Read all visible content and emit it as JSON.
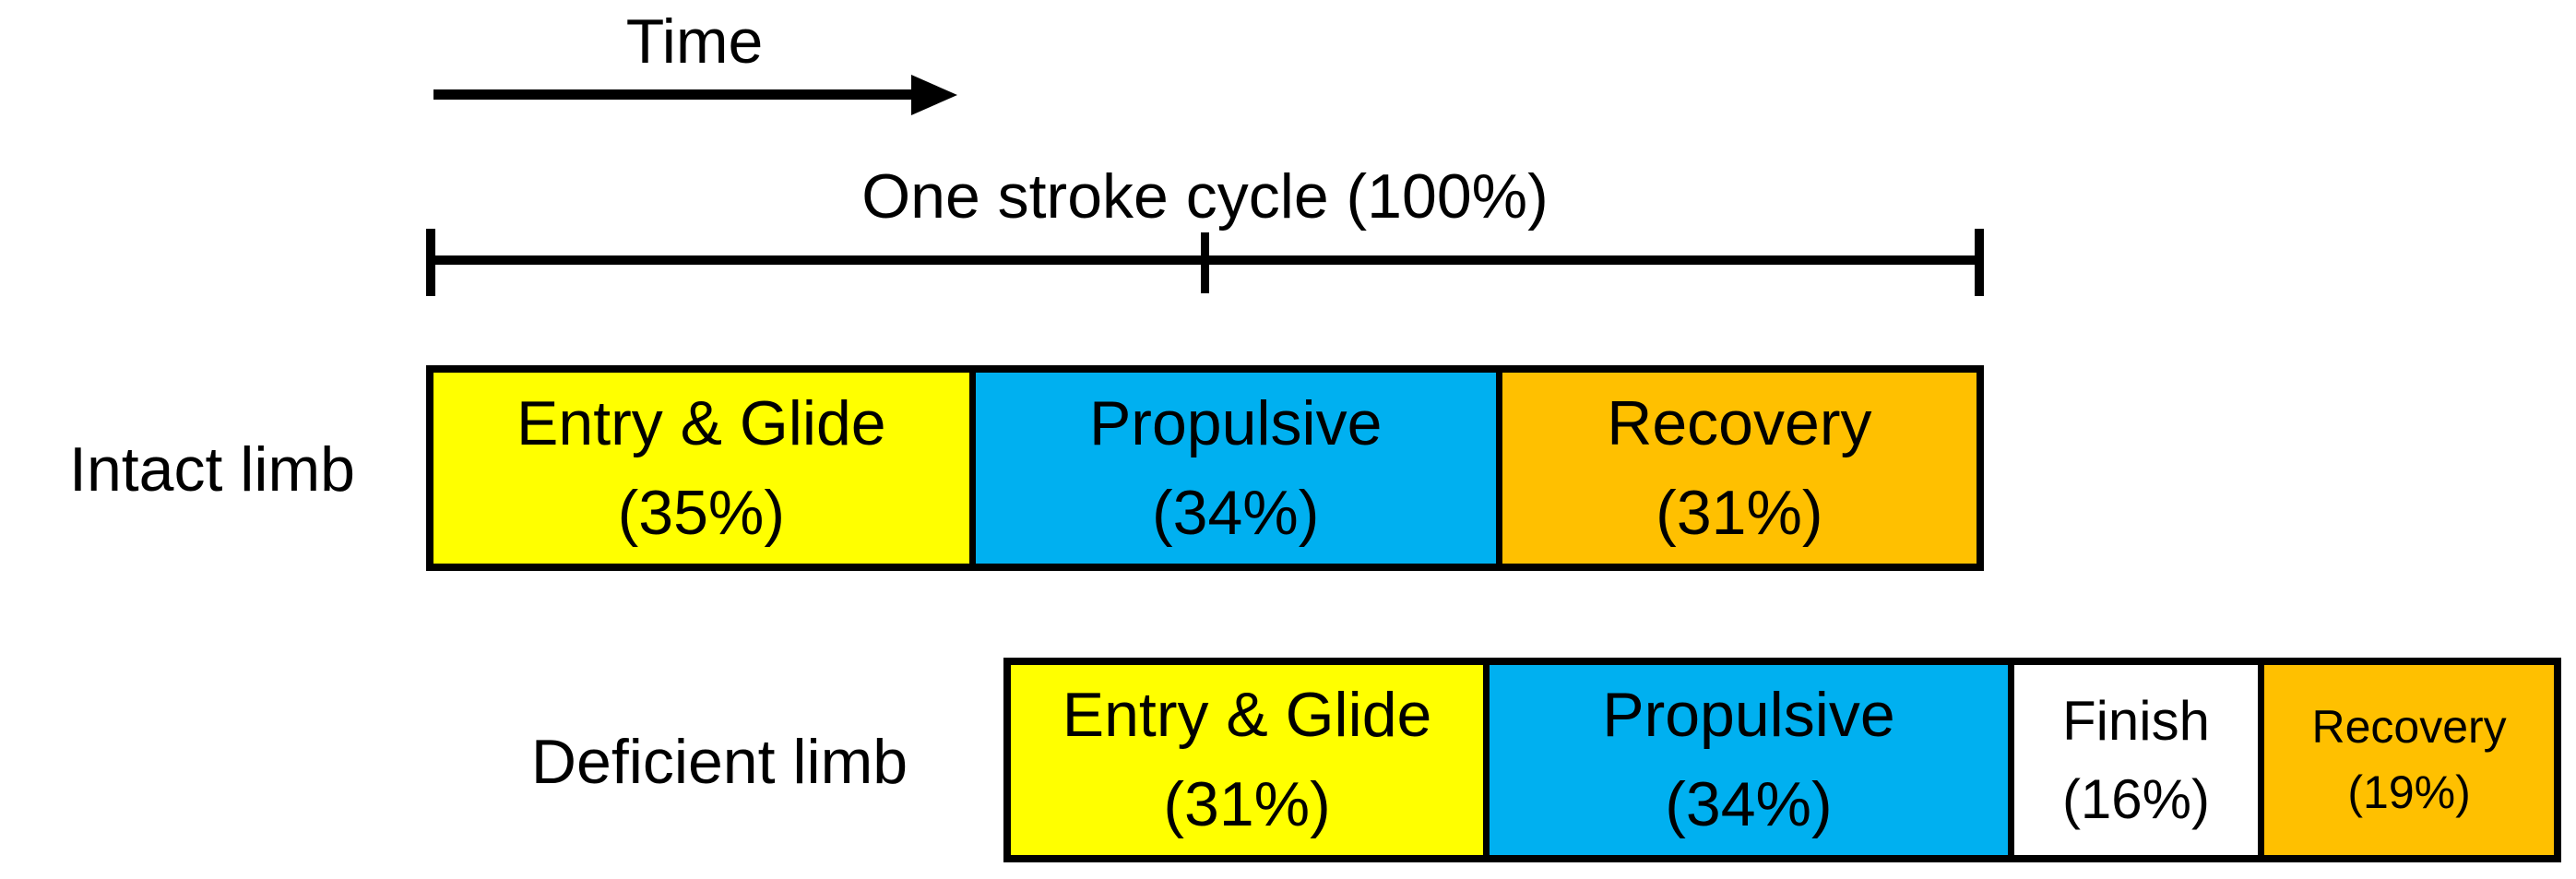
{
  "figure": {
    "background": "#ffffff",
    "line_color": "#000000",
    "time_axis": {
      "label": "Time"
    },
    "cycle_bracket": {
      "label": "One stroke cycle (100%)"
    }
  },
  "colors": {
    "entry_glide": "#FFFF00",
    "propulsive": "#00B0F0",
    "finish": "#FFFFFF",
    "recovery": "#FFC000"
  },
  "rows": [
    {
      "label": "Intact limb",
      "segments": [
        {
          "name": "Entry & Glide",
          "percent_label": "(35%)",
          "percent": 35,
          "color": "#FFFF00"
        },
        {
          "name": "Propulsive",
          "percent_label": "(34%)",
          "percent": 34,
          "color": "#00B0F0"
        },
        {
          "name": "Recovery",
          "percent_label": "(31%)",
          "percent": 31,
          "color": "#FFC000"
        }
      ]
    },
    {
      "label": "Deficient limb",
      "segments": [
        {
          "name": "Entry & Glide",
          "percent_label": "(31%)",
          "percent": 31,
          "color": "#FFFF00"
        },
        {
          "name": "Propulsive",
          "percent_label": "(34%)",
          "percent": 34,
          "color": "#00B0F0"
        },
        {
          "name": "Finish",
          "percent_label": "(16%)",
          "percent": 16,
          "color": "#FFFFFF"
        },
        {
          "name": "Recovery",
          "percent_label": "(19%)",
          "percent": 19,
          "color": "#FFC000"
        }
      ]
    }
  ],
  "chart_data": {
    "type": "bar",
    "subtype": "horizontal-stacked-timeline",
    "title": "One stroke cycle (100%)",
    "xlabel": "Time",
    "units": "percent of one stroke cycle",
    "xlim": [
      0,
      100
    ],
    "categories": [
      "Intact limb",
      "Deficient limb"
    ],
    "bars": [
      {
        "category": "Intact limb",
        "segments": [
          {
            "phase": "Entry & Glide",
            "value": 35,
            "color": "#FFFF00"
          },
          {
            "phase": "Propulsive",
            "value": 34,
            "color": "#00B0F0"
          },
          {
            "phase": "Recovery",
            "value": 31,
            "color": "#FFC000"
          }
        ]
      },
      {
        "category": "Deficient limb",
        "segments": [
          {
            "phase": "Entry & Glide",
            "value": 31,
            "color": "#FFFF00"
          },
          {
            "phase": "Propulsive",
            "value": 34,
            "color": "#00B0F0"
          },
          {
            "phase": "Finish",
            "value": 16,
            "color": "#FFFFFF"
          },
          {
            "phase": "Recovery",
            "value": 19,
            "color": "#FFC000"
          }
        ]
      }
    ],
    "annotations": [
      "Deficient-limb bar is offset to the right relative to the intact-limb bar (phase shift within the stroke cycle)",
      "Bracket with end ticks and midpoint tick spans the intact-limb bar"
    ],
    "legend": "none",
    "grid": false
  }
}
